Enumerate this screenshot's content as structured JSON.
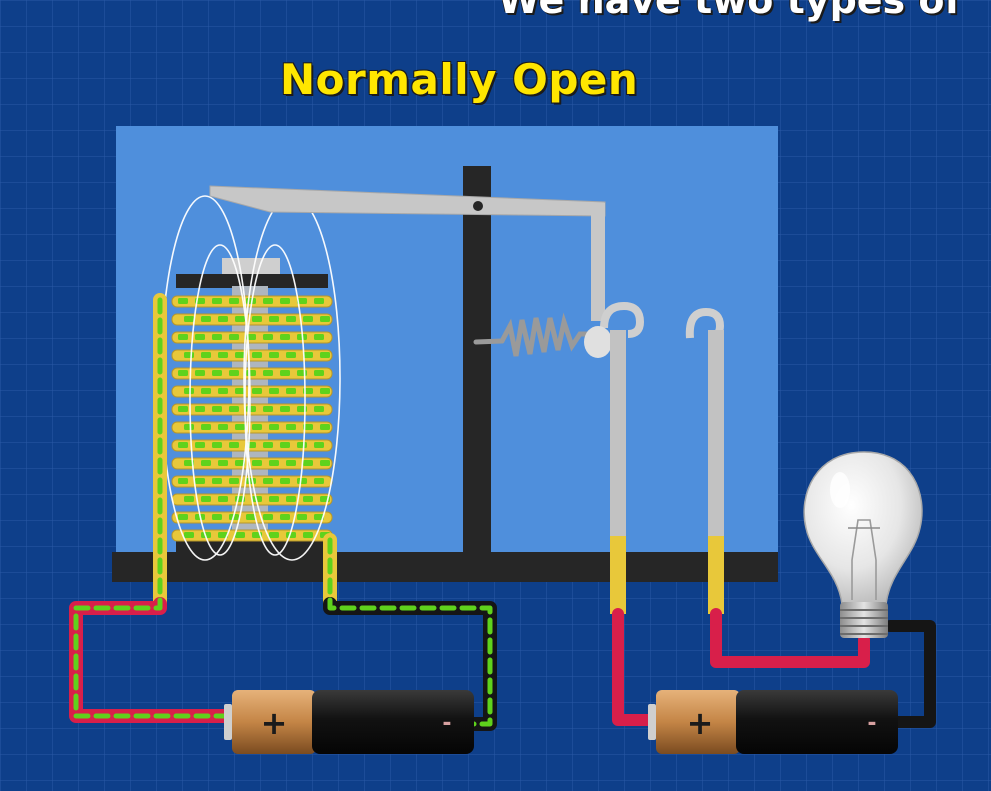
{
  "header": {
    "caption": "We have two types of",
    "title": "Normally Open"
  },
  "batteries": {
    "left": {
      "positive": "+",
      "negative": "-"
    },
    "right": {
      "positive": "+",
      "negative": "-"
    }
  },
  "colors": {
    "background": "#0e3f8a",
    "panel": "#4f8fdc",
    "title": "#ffe600",
    "wire_red": "#d81f4a",
    "wire_black": "#151515",
    "wire_yellow": "#e8c83a",
    "current_green": "#5fd21c",
    "battery_copper": "#c98a4e",
    "battery_black": "#1a1a1a"
  }
}
